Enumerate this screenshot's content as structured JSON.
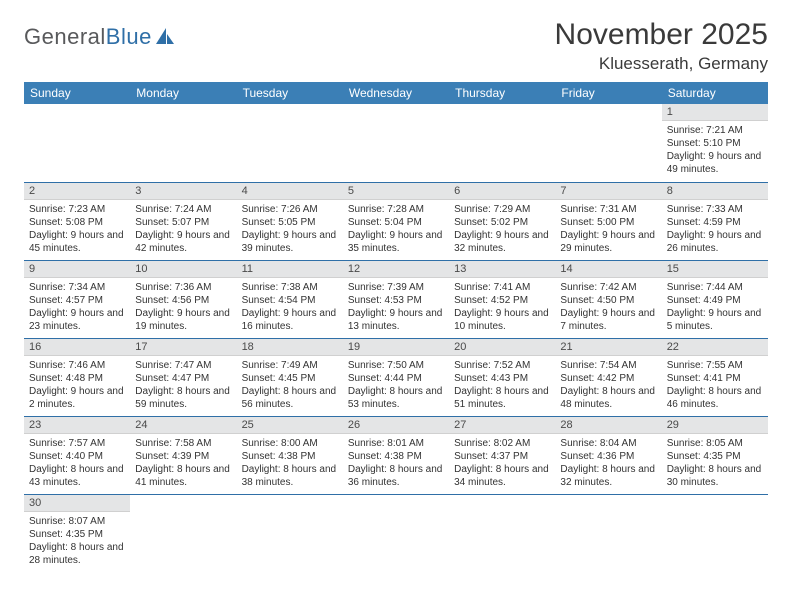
{
  "branding": {
    "logo_main": "General",
    "logo_accent": "Blue"
  },
  "header": {
    "title": "November 2025",
    "location": "Kluesserath, Germany"
  },
  "colors": {
    "header_bg": "#3b7fb6",
    "header_text": "#ffffff",
    "daynum_bg": "#e4e5e6",
    "rule": "#2f6fa7"
  },
  "weekdays": [
    "Sunday",
    "Monday",
    "Tuesday",
    "Wednesday",
    "Thursday",
    "Friday",
    "Saturday"
  ],
  "weeks": [
    [
      null,
      null,
      null,
      null,
      null,
      null,
      {
        "n": "1",
        "sunrise": "Sunrise: 7:21 AM",
        "sunset": "Sunset: 5:10 PM",
        "daylight": "Daylight: 9 hours and 49 minutes."
      }
    ],
    [
      {
        "n": "2",
        "sunrise": "Sunrise: 7:23 AM",
        "sunset": "Sunset: 5:08 PM",
        "daylight": "Daylight: 9 hours and 45 minutes."
      },
      {
        "n": "3",
        "sunrise": "Sunrise: 7:24 AM",
        "sunset": "Sunset: 5:07 PM",
        "daylight": "Daylight: 9 hours and 42 minutes."
      },
      {
        "n": "4",
        "sunrise": "Sunrise: 7:26 AM",
        "sunset": "Sunset: 5:05 PM",
        "daylight": "Daylight: 9 hours and 39 minutes."
      },
      {
        "n": "5",
        "sunrise": "Sunrise: 7:28 AM",
        "sunset": "Sunset: 5:04 PM",
        "daylight": "Daylight: 9 hours and 35 minutes."
      },
      {
        "n": "6",
        "sunrise": "Sunrise: 7:29 AM",
        "sunset": "Sunset: 5:02 PM",
        "daylight": "Daylight: 9 hours and 32 minutes."
      },
      {
        "n": "7",
        "sunrise": "Sunrise: 7:31 AM",
        "sunset": "Sunset: 5:00 PM",
        "daylight": "Daylight: 9 hours and 29 minutes."
      },
      {
        "n": "8",
        "sunrise": "Sunrise: 7:33 AM",
        "sunset": "Sunset: 4:59 PM",
        "daylight": "Daylight: 9 hours and 26 minutes."
      }
    ],
    [
      {
        "n": "9",
        "sunrise": "Sunrise: 7:34 AM",
        "sunset": "Sunset: 4:57 PM",
        "daylight": "Daylight: 9 hours and 23 minutes."
      },
      {
        "n": "10",
        "sunrise": "Sunrise: 7:36 AM",
        "sunset": "Sunset: 4:56 PM",
        "daylight": "Daylight: 9 hours and 19 minutes."
      },
      {
        "n": "11",
        "sunrise": "Sunrise: 7:38 AM",
        "sunset": "Sunset: 4:54 PM",
        "daylight": "Daylight: 9 hours and 16 minutes."
      },
      {
        "n": "12",
        "sunrise": "Sunrise: 7:39 AM",
        "sunset": "Sunset: 4:53 PM",
        "daylight": "Daylight: 9 hours and 13 minutes."
      },
      {
        "n": "13",
        "sunrise": "Sunrise: 7:41 AM",
        "sunset": "Sunset: 4:52 PM",
        "daylight": "Daylight: 9 hours and 10 minutes."
      },
      {
        "n": "14",
        "sunrise": "Sunrise: 7:42 AM",
        "sunset": "Sunset: 4:50 PM",
        "daylight": "Daylight: 9 hours and 7 minutes."
      },
      {
        "n": "15",
        "sunrise": "Sunrise: 7:44 AM",
        "sunset": "Sunset: 4:49 PM",
        "daylight": "Daylight: 9 hours and 5 minutes."
      }
    ],
    [
      {
        "n": "16",
        "sunrise": "Sunrise: 7:46 AM",
        "sunset": "Sunset: 4:48 PM",
        "daylight": "Daylight: 9 hours and 2 minutes."
      },
      {
        "n": "17",
        "sunrise": "Sunrise: 7:47 AM",
        "sunset": "Sunset: 4:47 PM",
        "daylight": "Daylight: 8 hours and 59 minutes."
      },
      {
        "n": "18",
        "sunrise": "Sunrise: 7:49 AM",
        "sunset": "Sunset: 4:45 PM",
        "daylight": "Daylight: 8 hours and 56 minutes."
      },
      {
        "n": "19",
        "sunrise": "Sunrise: 7:50 AM",
        "sunset": "Sunset: 4:44 PM",
        "daylight": "Daylight: 8 hours and 53 minutes."
      },
      {
        "n": "20",
        "sunrise": "Sunrise: 7:52 AM",
        "sunset": "Sunset: 4:43 PM",
        "daylight": "Daylight: 8 hours and 51 minutes."
      },
      {
        "n": "21",
        "sunrise": "Sunrise: 7:54 AM",
        "sunset": "Sunset: 4:42 PM",
        "daylight": "Daylight: 8 hours and 48 minutes."
      },
      {
        "n": "22",
        "sunrise": "Sunrise: 7:55 AM",
        "sunset": "Sunset: 4:41 PM",
        "daylight": "Daylight: 8 hours and 46 minutes."
      }
    ],
    [
      {
        "n": "23",
        "sunrise": "Sunrise: 7:57 AM",
        "sunset": "Sunset: 4:40 PM",
        "daylight": "Daylight: 8 hours and 43 minutes."
      },
      {
        "n": "24",
        "sunrise": "Sunrise: 7:58 AM",
        "sunset": "Sunset: 4:39 PM",
        "daylight": "Daylight: 8 hours and 41 minutes."
      },
      {
        "n": "25",
        "sunrise": "Sunrise: 8:00 AM",
        "sunset": "Sunset: 4:38 PM",
        "daylight": "Daylight: 8 hours and 38 minutes."
      },
      {
        "n": "26",
        "sunrise": "Sunrise: 8:01 AM",
        "sunset": "Sunset: 4:38 PM",
        "daylight": "Daylight: 8 hours and 36 minutes."
      },
      {
        "n": "27",
        "sunrise": "Sunrise: 8:02 AM",
        "sunset": "Sunset: 4:37 PM",
        "daylight": "Daylight: 8 hours and 34 minutes."
      },
      {
        "n": "28",
        "sunrise": "Sunrise: 8:04 AM",
        "sunset": "Sunset: 4:36 PM",
        "daylight": "Daylight: 8 hours and 32 minutes."
      },
      {
        "n": "29",
        "sunrise": "Sunrise: 8:05 AM",
        "sunset": "Sunset: 4:35 PM",
        "daylight": "Daylight: 8 hours and 30 minutes."
      }
    ],
    [
      {
        "n": "30",
        "sunrise": "Sunrise: 8:07 AM",
        "sunset": "Sunset: 4:35 PM",
        "daylight": "Daylight: 8 hours and 28 minutes."
      },
      null,
      null,
      null,
      null,
      null,
      null
    ]
  ]
}
